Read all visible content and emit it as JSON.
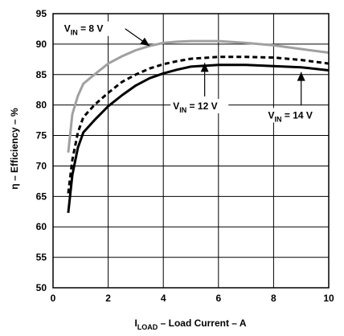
{
  "chart_data": {
    "type": "line",
    "title": "",
    "xlabel": {
      "main": "I",
      "sub": "LOAD",
      "rest": " – Load Current – A"
    },
    "ylabel": "η – Efficiency – %",
    "xlim": [
      0,
      10
    ],
    "ylim": [
      50,
      95
    ],
    "xticks": [
      "0",
      "2",
      "4",
      "6",
      "8",
      "10"
    ],
    "yticks": [
      "50",
      "55",
      "60",
      "65",
      "70",
      "75",
      "80",
      "85",
      "90",
      "95"
    ],
    "grid": true,
    "series": [
      {
        "name": {
          "main": "V",
          "sub": "IN",
          "rest": " = 8 V"
        },
        "color": "#a0a0a0",
        "dash": "solid",
        "x": [
          0.55,
          0.7,
          0.9,
          1.1,
          1.5,
          2.0,
          2.5,
          3.0,
          3.5,
          4.0,
          4.5,
          5.0,
          6.0,
          7.0,
          8.0,
          9.0,
          10.0
        ],
        "y": [
          72.2,
          78.5,
          81.5,
          83.5,
          85.0,
          86.8,
          88.0,
          89.0,
          89.7,
          90.2,
          90.4,
          90.5,
          90.5,
          90.2,
          89.8,
          89.2,
          88.6
        ]
      },
      {
        "name": {
          "main": "V",
          "sub": "IN",
          "rest": " = 12 V"
        },
        "color": "#000000",
        "dash": "dashed",
        "x": [
          0.55,
          0.7,
          0.9,
          1.1,
          1.5,
          2.0,
          2.5,
          3.0,
          3.5,
          4.0,
          4.5,
          5.0,
          6.0,
          7.0,
          8.0,
          9.0,
          10.0
        ],
        "y": [
          65.5,
          71.0,
          75.5,
          78.0,
          80.0,
          82.0,
          83.8,
          85.0,
          86.0,
          86.7,
          87.2,
          87.6,
          87.9,
          87.9,
          87.8,
          87.4,
          86.8
        ]
      },
      {
        "name": {
          "main": "V",
          "sub": "IN",
          "rest": " = 14 V"
        },
        "color": "#000000",
        "dash": "solid",
        "x": [
          0.55,
          0.7,
          0.9,
          1.1,
          1.5,
          2.0,
          2.5,
          3.0,
          3.5,
          4.0,
          4.5,
          5.0,
          6.0,
          7.0,
          8.0,
          9.0,
          10.0
        ],
        "y": [
          62.3,
          68.5,
          73.0,
          75.5,
          77.5,
          79.8,
          81.6,
          83.2,
          84.4,
          85.2,
          85.8,
          86.3,
          86.6,
          86.6,
          86.4,
          86.2,
          85.7
        ]
      }
    ],
    "annotations": [
      {
        "series": 0,
        "label": {
          "main": "V",
          "sub": "IN",
          "rest": " = 8 V"
        },
        "point_to": [
          3.5,
          89.7
        ],
        "text_at": [
          0.4,
          92.0
        ]
      },
      {
        "series": 1,
        "label": {
          "main": "V",
          "sub": "IN",
          "rest": " = 12 V"
        },
        "point_to": [
          5.5,
          87.7
        ],
        "text_at": [
          4.35,
          79.3
        ]
      },
      {
        "series": 2,
        "label": {
          "main": "V",
          "sub": "IN",
          "rest": " = 14 V"
        },
        "point_to": [
          9.0,
          86.2
        ],
        "text_at": [
          7.8,
          77.8
        ]
      }
    ]
  }
}
